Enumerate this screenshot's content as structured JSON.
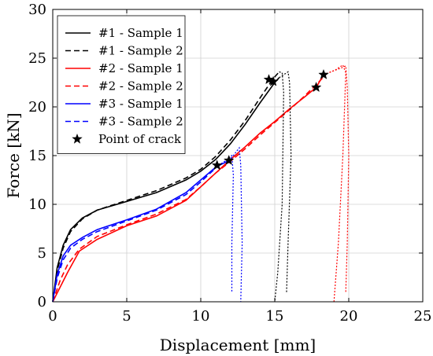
{
  "chart_data": {
    "type": "line",
    "xlabel": "Displacement [mm]",
    "ylabel": "Force [kN]",
    "xlim": [
      0,
      25
    ],
    "ylim": [
      0,
      30
    ],
    "xticks": [
      "0",
      "5",
      "10",
      "15",
      "20",
      "25"
    ],
    "yticks": [
      "0",
      "5",
      "10",
      "15",
      "20",
      "25",
      "30"
    ],
    "grid": true,
    "legend_position": "top-left",
    "series": [
      {
        "name": "#1 - Sample 1",
        "color": "#000000",
        "dash": "solid",
        "points": [
          [
            0,
            0
          ],
          [
            0.3,
            3.5
          ],
          [
            0.7,
            5.8
          ],
          [
            1.2,
            7.4
          ],
          [
            2,
            8.6
          ],
          [
            3,
            9.4
          ],
          [
            5,
            10.3
          ],
          [
            7,
            11.2
          ],
          [
            9,
            12.5
          ],
          [
            10,
            13.4
          ],
          [
            11,
            14.6
          ],
          [
            12,
            16.2
          ],
          [
            13,
            18.2
          ],
          [
            14,
            20.4
          ],
          [
            15,
            22.5
          ],
          [
            15.3,
            23.0
          ]
        ]
      },
      {
        "name": "#1 - Sample 2",
        "color": "#000000",
        "dash": "dashed",
        "points": [
          [
            0,
            0
          ],
          [
            0.3,
            3.2
          ],
          [
            0.7,
            5.5
          ],
          [
            1.2,
            7.2
          ],
          [
            2,
            8.5
          ],
          [
            3,
            9.4
          ],
          [
            5,
            10.4
          ],
          [
            7,
            11.4
          ],
          [
            9,
            12.7
          ],
          [
            10,
            13.6
          ],
          [
            11,
            14.9
          ],
          [
            12,
            16.6
          ],
          [
            13,
            18.6
          ],
          [
            14,
            20.9
          ],
          [
            14.9,
            22.9
          ],
          [
            15.3,
            23.6
          ]
        ]
      },
      {
        "name": "#2 - Sample 1",
        "color": "#ff0000",
        "dash": "solid",
        "points": [
          [
            0,
            0
          ],
          [
            0.5,
            1.5
          ],
          [
            1,
            3.0
          ],
          [
            1.8,
            5.2
          ],
          [
            3,
            6.4
          ],
          [
            5,
            7.8
          ],
          [
            7,
            8.8
          ],
          [
            9,
            10.4
          ],
          [
            10,
            11.8
          ],
          [
            11,
            13.2
          ],
          [
            12,
            14.6
          ],
          [
            13,
            15.9
          ],
          [
            14,
            17.3
          ],
          [
            15,
            18.5
          ],
          [
            16,
            19.8
          ],
          [
            17,
            21.0
          ],
          [
            17.8,
            22.0
          ],
          [
            18.3,
            23.3
          ]
        ]
      },
      {
        "name": "#2 - Sample 2",
        "color": "#ff0000",
        "dash": "dashed",
        "points": [
          [
            0,
            0
          ],
          [
            0.5,
            2.2
          ],
          [
            1,
            3.8
          ],
          [
            1.8,
            5.4
          ],
          [
            3,
            6.7
          ],
          [
            5,
            7.9
          ],
          [
            7,
            9.0
          ],
          [
            9,
            10.5
          ],
          [
            10,
            11.8
          ],
          [
            11,
            13.2
          ],
          [
            12,
            14.4
          ],
          [
            13,
            15.7
          ],
          [
            14,
            17.1
          ],
          [
            15,
            18.4
          ],
          [
            16,
            19.7
          ],
          [
            17,
            21.1
          ],
          [
            18,
            22.6
          ],
          [
            18.5,
            23.4
          ]
        ]
      },
      {
        "name": "#3 - Sample 1",
        "color": "#0000ff",
        "dash": "solid",
        "points": [
          [
            0,
            0
          ],
          [
            0.3,
            2.8
          ],
          [
            0.7,
            4.7
          ],
          [
            1.2,
            5.8
          ],
          [
            2,
            6.6
          ],
          [
            3,
            7.4
          ],
          [
            5,
            8.4
          ],
          [
            7,
            9.5
          ],
          [
            9,
            11.2
          ],
          [
            10,
            12.5
          ],
          [
            11,
            13.8
          ],
          [
            11.9,
            14.5
          ]
        ]
      },
      {
        "name": "#3 - Sample 2",
        "color": "#0000ff",
        "dash": "dashed",
        "points": [
          [
            0,
            0
          ],
          [
            0.3,
            2.4
          ],
          [
            0.7,
            4.3
          ],
          [
            1.2,
            5.5
          ],
          [
            2,
            6.4
          ],
          [
            3,
            7.2
          ],
          [
            5,
            8.3
          ],
          [
            7,
            9.4
          ],
          [
            9,
            11.0
          ],
          [
            10,
            12.3
          ],
          [
            11.2,
            14.0
          ]
        ]
      }
    ],
    "post_crack": [
      {
        "name": "#1 - Sample 1",
        "color": "#000000",
        "dash": "dotted",
        "points": [
          [
            15.3,
            23.0
          ],
          [
            15.6,
            23.3
          ],
          [
            15.9,
            23.6
          ],
          [
            16.0,
            22.5
          ],
          [
            16.1,
            15.0
          ],
          [
            15.9,
            6.0
          ],
          [
            15.8,
            1.0
          ]
        ]
      },
      {
        "name": "#1 - Sample 2",
        "color": "#000000",
        "dash": "dotted",
        "points": [
          [
            15.3,
            23.6
          ],
          [
            15.5,
            23.5
          ],
          [
            15.6,
            21.5
          ],
          [
            15.5,
            10.0
          ],
          [
            15.2,
            3.0
          ],
          [
            15.0,
            0
          ]
        ]
      },
      {
        "name": "#2 - Sample 1",
        "color": "#ff0000",
        "dash": "dotted",
        "points": [
          [
            18.3,
            23.3
          ],
          [
            18.8,
            23.6
          ],
          [
            19.5,
            24.0
          ],
          [
            19.8,
            24.2
          ],
          [
            19.9,
            22.0
          ],
          [
            20.0,
            15.0
          ],
          [
            19.9,
            6.0
          ],
          [
            19.8,
            1.0
          ]
        ]
      },
      {
        "name": "#2 - Sample 2",
        "color": "#ff0000",
        "dash": "dotted",
        "points": [
          [
            18.5,
            23.4
          ],
          [
            19.1,
            23.8
          ],
          [
            19.6,
            24.3
          ],
          [
            19.8,
            23.5
          ],
          [
            19.6,
            15.0
          ],
          [
            19.3,
            6.0
          ],
          [
            19.0,
            0
          ]
        ]
      },
      {
        "name": "#3 - Sample 1",
        "color": "#0000ff",
        "dash": "dotted",
        "points": [
          [
            11.9,
            14.5
          ],
          [
            12.2,
            15.0
          ],
          [
            12.6,
            15.8
          ],
          [
            12.7,
            14.0
          ],
          [
            12.8,
            6.0
          ],
          [
            12.7,
            0
          ]
        ]
      },
      {
        "name": "#3 - Sample 2",
        "color": "#0000ff",
        "dash": "dotted",
        "points": [
          [
            11.2,
            14.0
          ],
          [
            11.8,
            14.6
          ],
          [
            12.1,
            15.0
          ],
          [
            12.2,
            13.0
          ],
          [
            12.1,
            6.0
          ],
          [
            12.1,
            1.0
          ]
        ]
      }
    ],
    "crack_points": [
      [
        14.6,
        22.8
      ],
      [
        14.9,
        22.6
      ],
      [
        11.1,
        14.0
      ],
      [
        11.9,
        14.5
      ],
      [
        17.8,
        22.0
      ],
      [
        18.3,
        23.3
      ]
    ],
    "legend": [
      {
        "label": "#1 - Sample 1",
        "color": "#000000",
        "dash": "solid",
        "marker": "line"
      },
      {
        "label": "#1 - Sample 2",
        "color": "#000000",
        "dash": "dashed",
        "marker": "line"
      },
      {
        "label": "#2 - Sample 1",
        "color": "#ff0000",
        "dash": "solid",
        "marker": "line"
      },
      {
        "label": "#2 - Sample 2",
        "color": "#ff0000",
        "dash": "dashed",
        "marker": "line"
      },
      {
        "label": "#3 - Sample 1",
        "color": "#0000ff",
        "dash": "solid",
        "marker": "line"
      },
      {
        "label": "#3 - Sample 2",
        "color": "#0000ff",
        "dash": "dashed",
        "marker": "line"
      },
      {
        "label": "Point of crack",
        "color": "#000000",
        "dash": "none",
        "marker": "star"
      }
    ]
  }
}
